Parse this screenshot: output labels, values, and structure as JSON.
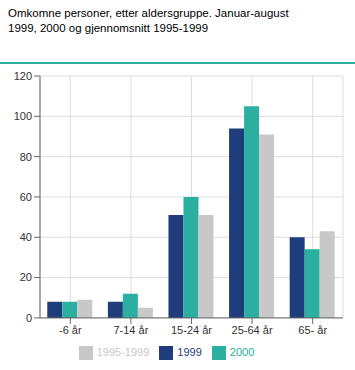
{
  "chart_data": {
    "type": "bar",
    "title": "Omkomne personer, etter aldersgruppe. Januar-august",
    "subtitle": "1999, 2000 og gjennomsnitt 1995-1999",
    "categories": [
      "-6 år",
      "7-14 år",
      "15-24 år",
      "25-64 år",
      "65- år"
    ],
    "series": [
      {
        "name": "1999",
        "color": "#1f3d7a",
        "values": [
          8,
          8,
          51,
          94,
          40
        ]
      },
      {
        "name": "2000",
        "color": "#2aafa0",
        "values": [
          8,
          12,
          60,
          105,
          34
        ]
      },
      {
        "name": "1995-1999",
        "color": "#c8c8c8",
        "values": [
          9,
          5,
          51,
          91,
          43
        ]
      }
    ],
    "ylim": [
      0,
      120
    ],
    "yticks": [
      0,
      20,
      40,
      60,
      80,
      100,
      120
    ],
    "grid": true,
    "legend": "bottom"
  }
}
